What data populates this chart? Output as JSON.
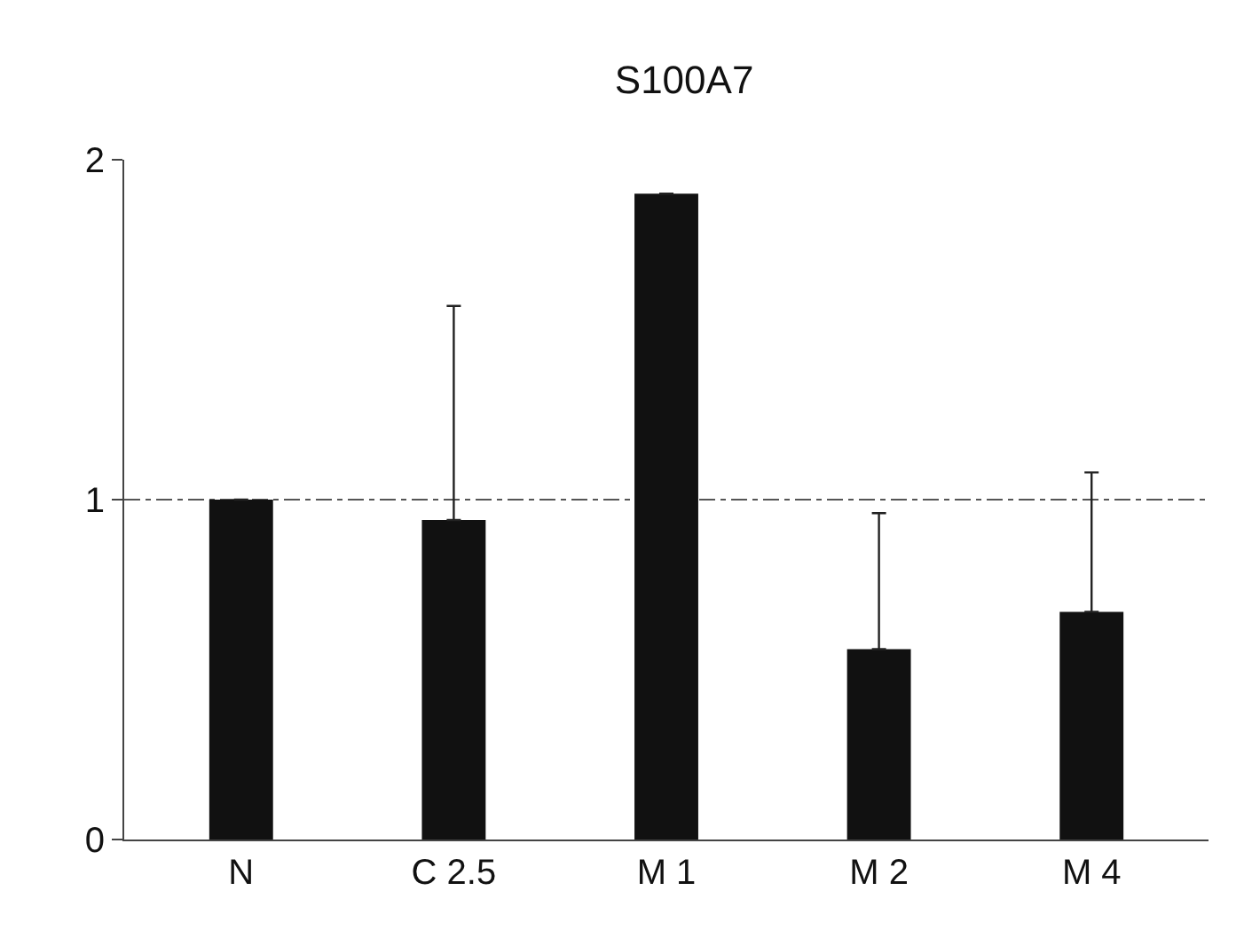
{
  "chart_data": {
    "type": "bar",
    "title": "S100A7",
    "categories": [
      "N",
      "C 2.5",
      "M 1",
      "M 2",
      "M 4"
    ],
    "values": [
      1.0,
      0.94,
      1.9,
      0.56,
      0.67
    ],
    "errors": [
      null,
      [
        0.94,
        1.57
      ],
      null,
      [
        0.56,
        0.96
      ],
      [
        0.67,
        1.08
      ]
    ],
    "color": "#111111",
    "ylim": [
      0,
      2
    ],
    "yticks": [
      0,
      1,
      2
    ],
    "grid": "y"
  }
}
